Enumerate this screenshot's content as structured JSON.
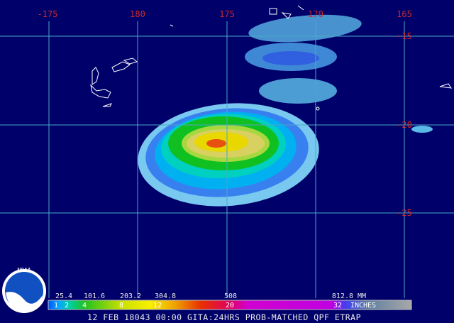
{
  "map": {
    "longitude_labels": [
      "-175",
      "180",
      "175",
      "170",
      "165"
    ],
    "latitude_labels": [
      "-15",
      "-20",
      "-25"
    ],
    "legend": {
      "mm_labels": [
        "25.4",
        "101.6",
        "203.2",
        "304.8",
        "508",
        "812.8 MM"
      ],
      "inch_labels": [
        "1",
        "2",
        "4",
        "8",
        "12",
        "20",
        "32",
        "INCHES"
      ]
    },
    "logo": "NOAA",
    "caption": "12 FEB 18043 00:00 GITA:24HRS PROB-MATCHED QPF ETRAP"
  }
}
